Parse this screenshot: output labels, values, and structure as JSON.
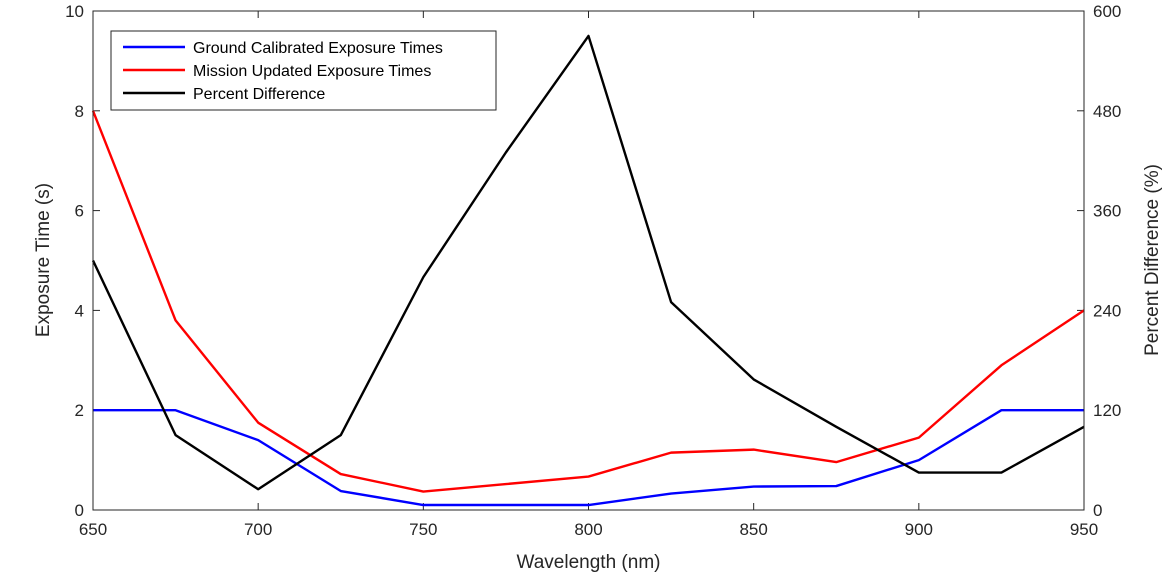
{
  "chart_data": {
    "type": "line",
    "title": "",
    "xlabel": "Wavelength (nm)",
    "ylabel": "Exposure Time (s)",
    "y2label": "Percent Difference (%)",
    "xlim": [
      650,
      950
    ],
    "ylim": [
      0,
      10
    ],
    "y2lim": [
      0,
      600
    ],
    "xticks": [
      650,
      700,
      750,
      800,
      850,
      900,
      950
    ],
    "yticks": [
      0,
      2,
      4,
      6,
      8,
      10
    ],
    "y2ticks": [
      0,
      120,
      240,
      360,
      480,
      600
    ],
    "grid": false,
    "legend": "top-left",
    "series": [
      {
        "name": "Ground Calibrated Exposure Times",
        "axis": "left",
        "color": "#0000ff",
        "x": [
          650,
          675,
          700,
          725,
          750,
          775,
          800,
          825,
          850,
          875,
          900,
          925,
          950
        ],
        "y": [
          2.0,
          2.0,
          1.4,
          0.38,
          0.1,
          0.1,
          0.1,
          0.33,
          0.47,
          0.48,
          1.0,
          2.0,
          2.0
        ]
      },
      {
        "name": "Mission Updated Exposure Times",
        "axis": "left",
        "color": "#ff0000",
        "x": [
          650,
          675,
          700,
          725,
          750,
          775,
          800,
          825,
          850,
          875,
          900,
          925,
          950
        ],
        "y": [
          8.0,
          3.8,
          1.75,
          0.72,
          0.37,
          0.52,
          0.67,
          1.15,
          1.21,
          0.96,
          1.45,
          2.9,
          4.0
        ]
      },
      {
        "name": "Percent Difference",
        "axis": "right",
        "color": "#000000",
        "x": [
          650,
          675,
          700,
          725,
          750,
          775,
          800,
          825,
          850,
          875,
          900,
          925,
          950
        ],
        "y": [
          300,
          90,
          25,
          90,
          280,
          430,
          570,
          250,
          157,
          100,
          45,
          45,
          100
        ]
      }
    ]
  }
}
